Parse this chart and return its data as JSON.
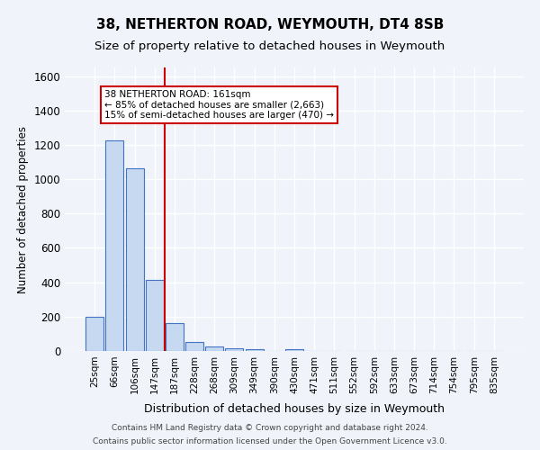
{
  "title1": "38, NETHERTON ROAD, WEYMOUTH, DT4 8SB",
  "title2": "Size of property relative to detached houses in Weymouth",
  "xlabel": "Distribution of detached houses by size in Weymouth",
  "ylabel": "Number of detached properties",
  "categories": [
    "25sqm",
    "66sqm",
    "106sqm",
    "147sqm",
    "187sqm",
    "228sqm",
    "268sqm",
    "309sqm",
    "349sqm",
    "390sqm",
    "430sqm",
    "471sqm",
    "511sqm",
    "552sqm",
    "592sqm",
    "633sqm",
    "673sqm",
    "714sqm",
    "754sqm",
    "795sqm",
    "835sqm"
  ],
  "values": [
    200,
    1225,
    1065,
    415,
    165,
    50,
    25,
    15,
    10,
    0,
    10,
    0,
    0,
    0,
    0,
    0,
    0,
    0,
    0,
    0,
    0
  ],
  "bar_color": "#c6d9f0",
  "bar_edge_color": "#4472c4",
  "vline_x": 3.5,
  "vline_color": "#cc0000",
  "annotation_text": "38 NETHERTON ROAD: 161sqm\n← 85% of detached houses are smaller (2,663)\n15% of semi-detached houses are larger (470) →",
  "annotation_box_color": "#ffffff",
  "annotation_box_edge_color": "#cc0000",
  "ylim": [
    0,
    1650
  ],
  "yticks": [
    0,
    200,
    400,
    600,
    800,
    1000,
    1200,
    1400,
    1600
  ],
  "footer1": "Contains HM Land Registry data © Crown copyright and database right 2024.",
  "footer2": "Contains public sector information licensed under the Open Government Licence v3.0.",
  "bg_color": "#f0f4fa",
  "plot_bg_color": "#f0f4fa",
  "grid_color": "#ffffff"
}
